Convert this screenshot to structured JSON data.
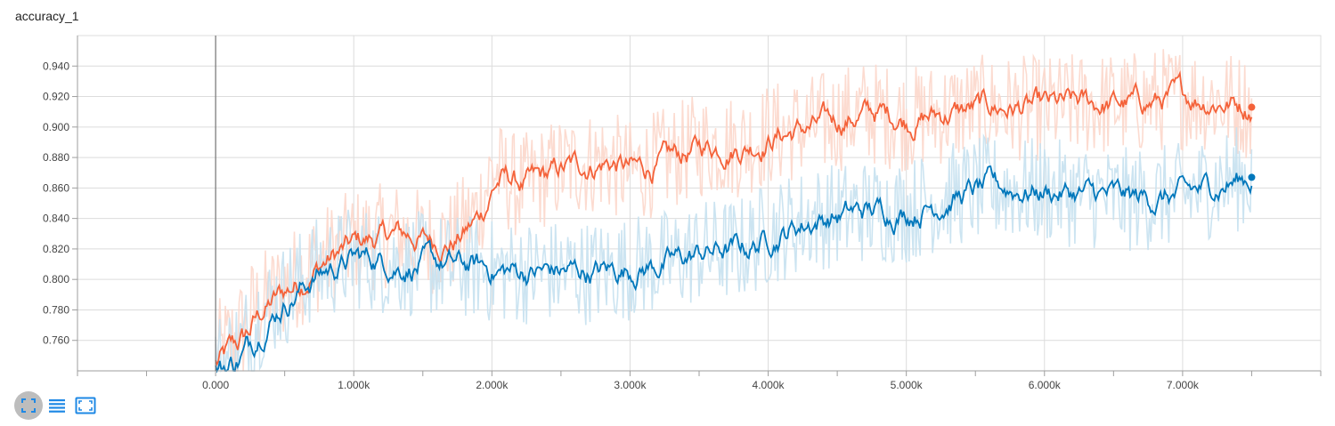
{
  "chart_title": "accuracy_1",
  "colors": {
    "series_orange": "#f4623a",
    "series_orange_raw": "#fcd7cb",
    "series_blue": "#0077bb",
    "series_blue_raw": "#c6e1ef",
    "grid": "#dcdcdc",
    "axis": "#9e9e9e",
    "toolbar_icon": "#1e88e5"
  },
  "toolbar": {
    "buttons": [
      {
        "name": "fit-domain-icon",
        "active": true
      },
      {
        "name": "log-scale-list-icon",
        "active": false
      },
      {
        "name": "expand-chart-icon",
        "active": false
      }
    ]
  },
  "chart_data": {
    "type": "line",
    "title": "accuracy_1",
    "xlabel": "",
    "ylabel": "",
    "xlim": [
      -1000,
      8000
    ],
    "ylim": [
      0.74,
      0.96
    ],
    "x_ticks": [
      0,
      1000,
      2000,
      3000,
      4000,
      5000,
      6000,
      7000
    ],
    "x_tick_labels": [
      "0.000",
      "1.000k",
      "2.000k",
      "3.000k",
      "4.000k",
      "5.000k",
      "6.000k",
      "7.000k"
    ],
    "y_ticks": [
      0.76,
      0.78,
      0.8,
      0.82,
      0.84,
      0.86,
      0.88,
      0.9,
      0.92,
      0.94
    ],
    "y_tick_labels": [
      "0.760",
      "0.780",
      "0.800",
      "0.820",
      "0.840",
      "0.860",
      "0.880",
      "0.900",
      "0.920",
      "0.940"
    ],
    "grid": true,
    "smoothed": true,
    "series": [
      {
        "color": "#f4623a",
        "x": [
          0,
          200,
          300,
          500,
          700,
          1000,
          1300,
          1500,
          1700,
          1900,
          2000,
          2200,
          2500,
          2800,
          3000,
          3300,
          3500,
          3800,
          4000,
          4300,
          4700,
          5000,
          5300,
          5600,
          6000,
          6300,
          6600,
          7000,
          7300,
          7500
        ],
        "y": [
          0.745,
          0.765,
          0.782,
          0.795,
          0.81,
          0.825,
          0.83,
          0.825,
          0.825,
          0.845,
          0.872,
          0.86,
          0.873,
          0.878,
          0.87,
          0.88,
          0.888,
          0.888,
          0.895,
          0.9,
          0.91,
          0.905,
          0.91,
          0.913,
          0.912,
          0.915,
          0.915,
          0.92,
          0.917,
          0.913
        ]
      },
      {
        "color": "#0077bb",
        "x": [
          0,
          200,
          300,
          500,
          700,
          1000,
          1300,
          1500,
          1700,
          1900,
          2000,
          2200,
          2500,
          2800,
          3000,
          3300,
          3500,
          3800,
          4000,
          4300,
          4700,
          5000,
          5300,
          5600,
          6000,
          6300,
          6600,
          7000,
          7300,
          7500
        ],
        "y": [
          0.74,
          0.755,
          0.775,
          0.79,
          0.805,
          0.815,
          0.81,
          0.81,
          0.808,
          0.808,
          0.805,
          0.805,
          0.805,
          0.805,
          0.808,
          0.812,
          0.818,
          0.82,
          0.83,
          0.84,
          0.845,
          0.845,
          0.855,
          0.86,
          0.858,
          0.855,
          0.852,
          0.855,
          0.865,
          0.867
        ]
      }
    ]
  }
}
